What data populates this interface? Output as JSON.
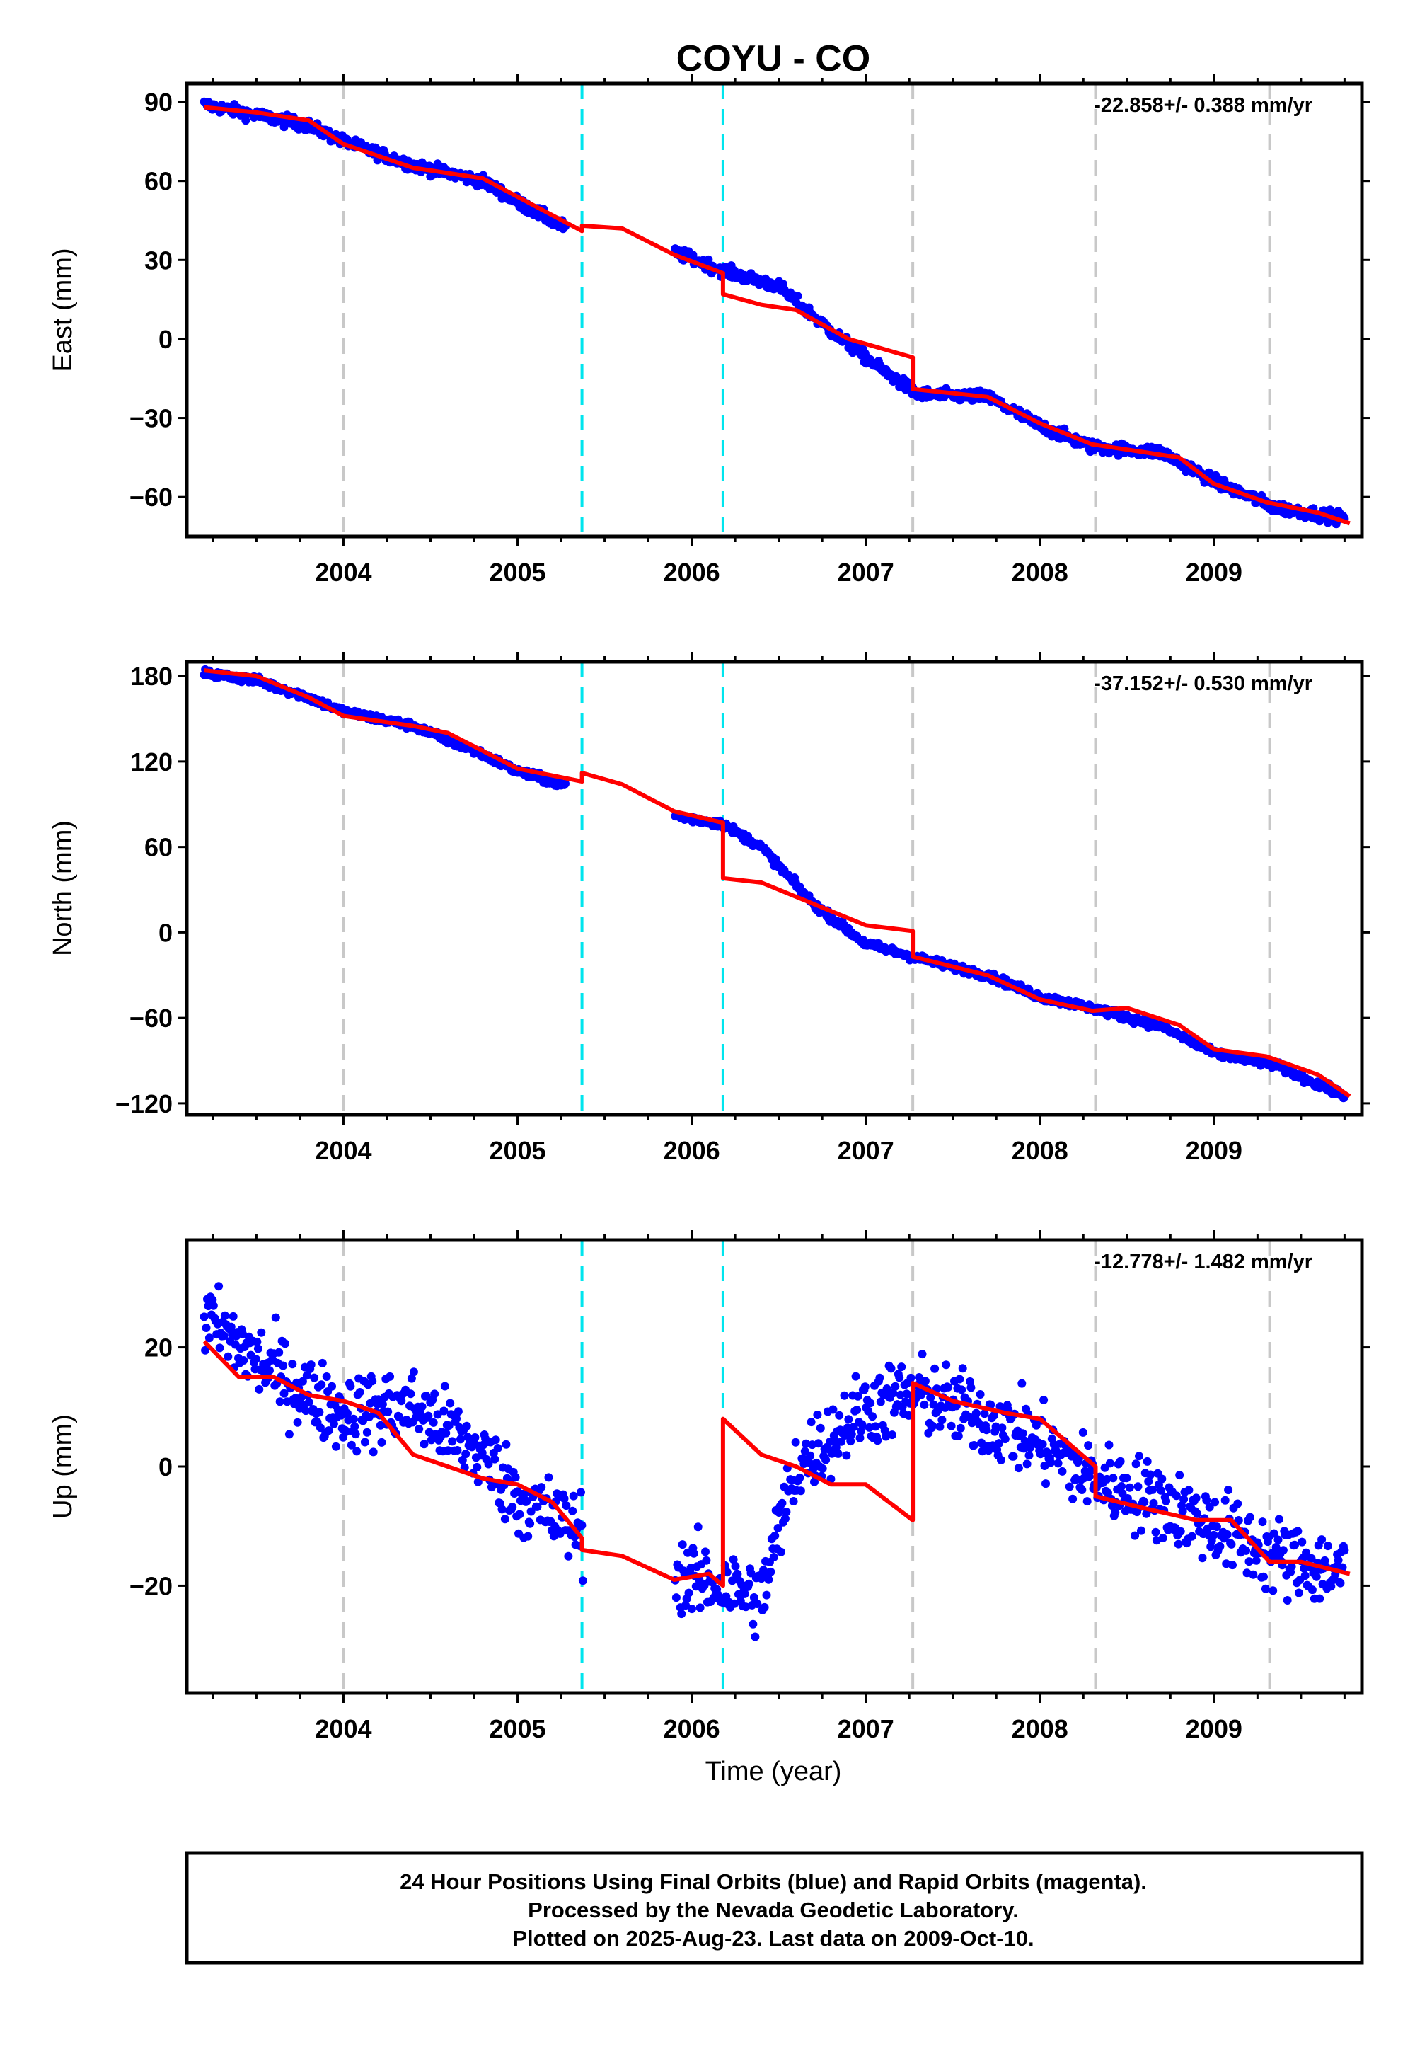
{
  "title": "COYU - CO",
  "xlabel": "Time (year)",
  "footer": {
    "line1": "24 Hour Positions Using Final Orbits (blue) and Rapid Orbits (magenta).",
    "line2": "Processed by the Nevada Geodetic Laboratory.",
    "line3": "Plotted on 2025-Aug-23. Last data on 2009-Oct-10."
  },
  "colors": {
    "data": "#0000ff",
    "model": "#ff0000",
    "equipment_change": "#00e5ee",
    "other_step": "#c8c8c8",
    "frame": "#000000"
  },
  "chart_data": [
    {
      "type": "scatter",
      "component": "East",
      "ylabel": "East (mm)",
      "rate_label": "-22.858+/- 0.388 mm/yr",
      "xlim": [
        2003.1,
        2009.85
      ],
      "ylim": [
        -75,
        97
      ],
      "yticks": [
        90,
        60,
        30,
        0,
        -30,
        -60
      ],
      "ytick_labels": [
        "90",
        "60",
        "30",
        "0",
        "−30",
        "−60"
      ],
      "xticks": [
        2004,
        2005,
        2006,
        2007,
        2008,
        2009
      ],
      "xtick_labels": [
        "2004",
        "2005",
        "2006",
        "2007",
        "2008",
        "2009"
      ],
      "gaps": [
        [
          2005.28,
          2005.9
        ]
      ],
      "noise": 2.0,
      "data_anchors": [
        [
          2003.2,
          89
        ],
        [
          2003.5,
          85
        ],
        [
          2003.8,
          81
        ],
        [
          2004.0,
          75
        ],
        [
          2004.4,
          66
        ],
        [
          2004.8,
          60
        ],
        [
          2005.0,
          52
        ],
        [
          2005.28,
          42
        ],
        [
          2005.9,
          33
        ],
        [
          2006.18,
          26
        ],
        [
          2006.5,
          20
        ],
        [
          2006.8,
          3
        ],
        [
          2007.1,
          -12
        ],
        [
          2007.3,
          -21
        ],
        [
          2007.7,
          -22
        ],
        [
          2008.0,
          -33
        ],
        [
          2008.3,
          -41
        ],
        [
          2008.7,
          -43
        ],
        [
          2009.0,
          -54
        ],
        [
          2009.35,
          -64
        ],
        [
          2009.75,
          -68
        ]
      ],
      "model": [
        [
          2003.2,
          88
        ],
        [
          2003.5,
          86
        ],
        [
          2003.8,
          83
        ],
        [
          2004.0,
          74
        ],
        [
          2004.4,
          65
        ],
        [
          2004.6,
          63
        ],
        [
          2004.8,
          61
        ],
        [
          2005.0,
          54
        ],
        [
          2005.37,
          41
        ],
        [
          2005.37,
          43
        ],
        [
          2005.6,
          42
        ],
        [
          2005.9,
          32
        ],
        [
          2006.18,
          25
        ],
        [
          2006.18,
          17
        ],
        [
          2006.4,
          13
        ],
        [
          2006.6,
          11
        ],
        [
          2006.9,
          0
        ],
        [
          2007.27,
          -7
        ],
        [
          2007.27,
          -19
        ],
        [
          2007.7,
          -22
        ],
        [
          2008.0,
          -32
        ],
        [
          2008.3,
          -40
        ],
        [
          2008.6,
          -43
        ],
        [
          2008.8,
          -45
        ],
        [
          2009.0,
          -55
        ],
        [
          2009.3,
          -62
        ],
        [
          2009.6,
          -66
        ],
        [
          2009.78,
          -70
        ]
      ],
      "steps_equipment": [
        2005.37,
        2006.18
      ],
      "steps_other": [
        2004.0,
        2007.27,
        2008.32,
        2009.32
      ]
    },
    {
      "type": "scatter",
      "component": "North",
      "ylabel": "North (mm)",
      "rate_label": "-37.152+/- 0.530 mm/yr",
      "xlim": [
        2003.1,
        2009.85
      ],
      "ylim": [
        -128,
        190
      ],
      "yticks": [
        180,
        120,
        60,
        0,
        -60,
        -120
      ],
      "ytick_labels": [
        "180",
        "120",
        "60",
        "0",
        "−60",
        "−120"
      ],
      "xticks": [
        2004,
        2005,
        2006,
        2007,
        2008,
        2009
      ],
      "xtick_labels": [
        "2004",
        "2005",
        "2006",
        "2007",
        "2008",
        "2009"
      ],
      "gaps": [
        [
          2005.28,
          2005.9
        ]
      ],
      "noise": 2.5,
      "data_anchors": [
        [
          2003.2,
          182
        ],
        [
          2003.5,
          177
        ],
        [
          2003.8,
          165
        ],
        [
          2004.0,
          155
        ],
        [
          2004.4,
          145
        ],
        [
          2004.8,
          125
        ],
        [
          2005.0,
          113
        ],
        [
          2005.28,
          103
        ],
        [
          2005.9,
          82
        ],
        [
          2006.18,
          76
        ],
        [
          2006.4,
          60
        ],
        [
          2006.7,
          20
        ],
        [
          2007.0,
          -8
        ],
        [
          2007.3,
          -18
        ],
        [
          2007.7,
          -30
        ],
        [
          2008.0,
          -45
        ],
        [
          2008.3,
          -53
        ],
        [
          2008.7,
          -66
        ],
        [
          2009.0,
          -85
        ],
        [
          2009.35,
          -93
        ],
        [
          2009.75,
          -115
        ]
      ],
      "model": [
        [
          2003.2,
          184
        ],
        [
          2003.5,
          180
        ],
        [
          2003.8,
          165
        ],
        [
          2004.0,
          152
        ],
        [
          2004.4,
          145
        ],
        [
          2004.6,
          140
        ],
        [
          2005.0,
          115
        ],
        [
          2005.37,
          106
        ],
        [
          2005.37,
          112
        ],
        [
          2005.6,
          104
        ],
        [
          2005.9,
          85
        ],
        [
          2006.18,
          77
        ],
        [
          2006.18,
          38
        ],
        [
          2006.4,
          35
        ],
        [
          2006.7,
          20
        ],
        [
          2007.0,
          5
        ],
        [
          2007.27,
          1
        ],
        [
          2007.27,
          -17
        ],
        [
          2007.7,
          -30
        ],
        [
          2008.0,
          -47
        ],
        [
          2008.3,
          -55
        ],
        [
          2008.5,
          -53
        ],
        [
          2008.8,
          -65
        ],
        [
          2009.0,
          -82
        ],
        [
          2009.3,
          -87
        ],
        [
          2009.6,
          -100
        ],
        [
          2009.78,
          -115
        ]
      ],
      "steps_equipment": [
        2005.37,
        2006.18
      ],
      "steps_other": [
        2004.0,
        2007.27,
        2008.32,
        2009.32
      ]
    },
    {
      "type": "scatter",
      "component": "Up",
      "ylabel": "Up (mm)",
      "rate_label": "-12.778+/- 1.482 mm/yr",
      "xlim": [
        2003.1,
        2009.85
      ],
      "ylim": [
        -38,
        38
      ],
      "yticks": [
        20,
        0,
        -20
      ],
      "ytick_labels": [
        "20",
        "0",
        "−20"
      ],
      "xticks": [
        2004,
        2005,
        2006,
        2007,
        2008,
        2009
      ],
      "xtick_labels": [
        "2004",
        "2005",
        "2006",
        "2007",
        "2008",
        "2009"
      ],
      "gaps": [
        [
          2005.38,
          2005.9
        ]
      ],
      "noise": 6.0,
      "data_anchors": [
        [
          2003.2,
          25
        ],
        [
          2003.5,
          18
        ],
        [
          2003.8,
          12
        ],
        [
          2004.0,
          9
        ],
        [
          2004.4,
          10
        ],
        [
          2004.8,
          2
        ],
        [
          2005.0,
          -5
        ],
        [
          2005.3,
          -10
        ],
        [
          2005.9,
          -18
        ],
        [
          2006.18,
          -20
        ],
        [
          2006.4,
          -22
        ],
        [
          2006.6,
          0
        ],
        [
          2007.0,
          10
        ],
        [
          2007.3,
          12
        ],
        [
          2007.7,
          8
        ],
        [
          2008.0,
          4
        ],
        [
          2008.3,
          -2
        ],
        [
          2008.7,
          -6
        ],
        [
          2009.0,
          -10
        ],
        [
          2009.35,
          -15
        ],
        [
          2009.75,
          -18
        ]
      ],
      "model": [
        [
          2003.2,
          21
        ],
        [
          2003.4,
          15
        ],
        [
          2003.6,
          15
        ],
        [
          2003.8,
          12
        ],
        [
          2004.0,
          11
        ],
        [
          2004.2,
          9
        ],
        [
          2004.4,
          2
        ],
        [
          2004.6,
          0
        ],
        [
          2004.8,
          -2
        ],
        [
          2005.0,
          -3
        ],
        [
          2005.2,
          -6
        ],
        [
          2005.37,
          -12
        ],
        [
          2005.37,
          -14
        ],
        [
          2005.6,
          -15
        ],
        [
          2005.9,
          -19
        ],
        [
          2006.1,
          -18
        ],
        [
          2006.18,
          -20
        ],
        [
          2006.18,
          8
        ],
        [
          2006.4,
          2
        ],
        [
          2006.6,
          0
        ],
        [
          2006.8,
          -3
        ],
        [
          2007.0,
          -3
        ],
        [
          2007.27,
          -9
        ],
        [
          2007.27,
          14
        ],
        [
          2007.5,
          11
        ],
        [
          2007.8,
          9
        ],
        [
          2008.0,
          8
        ],
        [
          2008.32,
          0
        ],
        [
          2008.32,
          -5
        ],
        [
          2008.6,
          -7
        ],
        [
          2008.9,
          -9
        ],
        [
          2009.1,
          -9
        ],
        [
          2009.32,
          -16
        ],
        [
          2009.5,
          -16
        ],
        [
          2009.78,
          -18
        ]
      ],
      "steps_equipment": [
        2005.37,
        2006.18
      ],
      "steps_other": [
        2004.0,
        2007.27,
        2008.32,
        2009.32
      ]
    }
  ]
}
